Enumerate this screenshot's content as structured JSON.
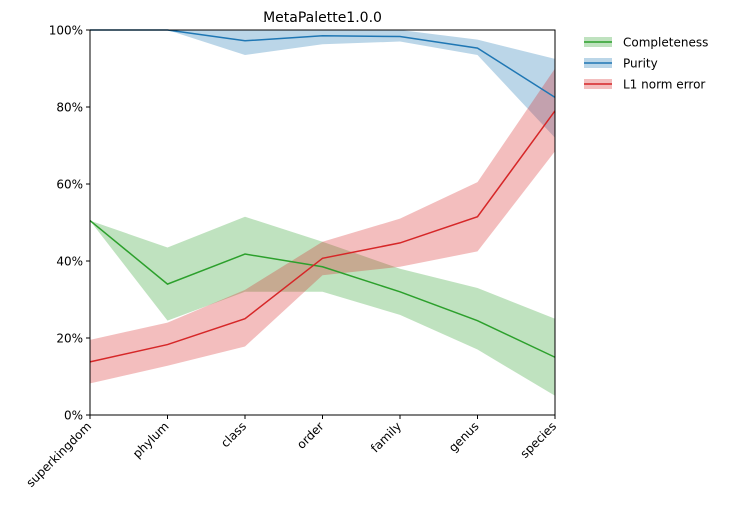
{
  "chart_data": {
    "type": "line",
    "title": "MetaPalette1.0.0",
    "xlabel": "",
    "ylabel": "",
    "categories": [
      "superkingdom",
      "phylum",
      "class",
      "order",
      "family",
      "genus",
      "species"
    ],
    "ylim": [
      0,
      100
    ],
    "yticks": [
      "0%",
      "20%",
      "40%",
      "60%",
      "80%",
      "100%"
    ],
    "grid": false,
    "legend_position": "outside-top-right",
    "series": [
      {
        "name": "Completeness",
        "color": "#2ca02c",
        "fill_color": "#2ca02c",
        "values": [
          50.5,
          34,
          41.8,
          38.5,
          32,
          24.5,
          15
        ],
        "lower": [
          50.5,
          24.5,
          32,
          32,
          26,
          17,
          5
        ],
        "upper": [
          50.5,
          43.5,
          51.5,
          45,
          38,
          33,
          25
        ]
      },
      {
        "name": "Purity",
        "color": "#1f77b4",
        "fill_color": "#1f77b4",
        "values": [
          100,
          100,
          97.2,
          98.5,
          98.3,
          95.3,
          82.5
        ],
        "lower": [
          100,
          100,
          93.5,
          96.3,
          97,
          93.5,
          72
        ],
        "upper": [
          100,
          100,
          100,
          100,
          100,
          97.5,
          92.5
        ]
      },
      {
        "name": "L1 norm error",
        "color": "#d62728",
        "fill_color": "#d62728",
        "values": [
          13.8,
          18.3,
          25,
          40.7,
          44.7,
          51.5,
          79
        ],
        "lower": [
          8.2,
          12.8,
          17.8,
          36.3,
          38.5,
          42.5,
          68.5
        ],
        "upper": [
          19.5,
          24,
          32.5,
          45,
          51,
          60.5,
          90
        ]
      }
    ]
  }
}
